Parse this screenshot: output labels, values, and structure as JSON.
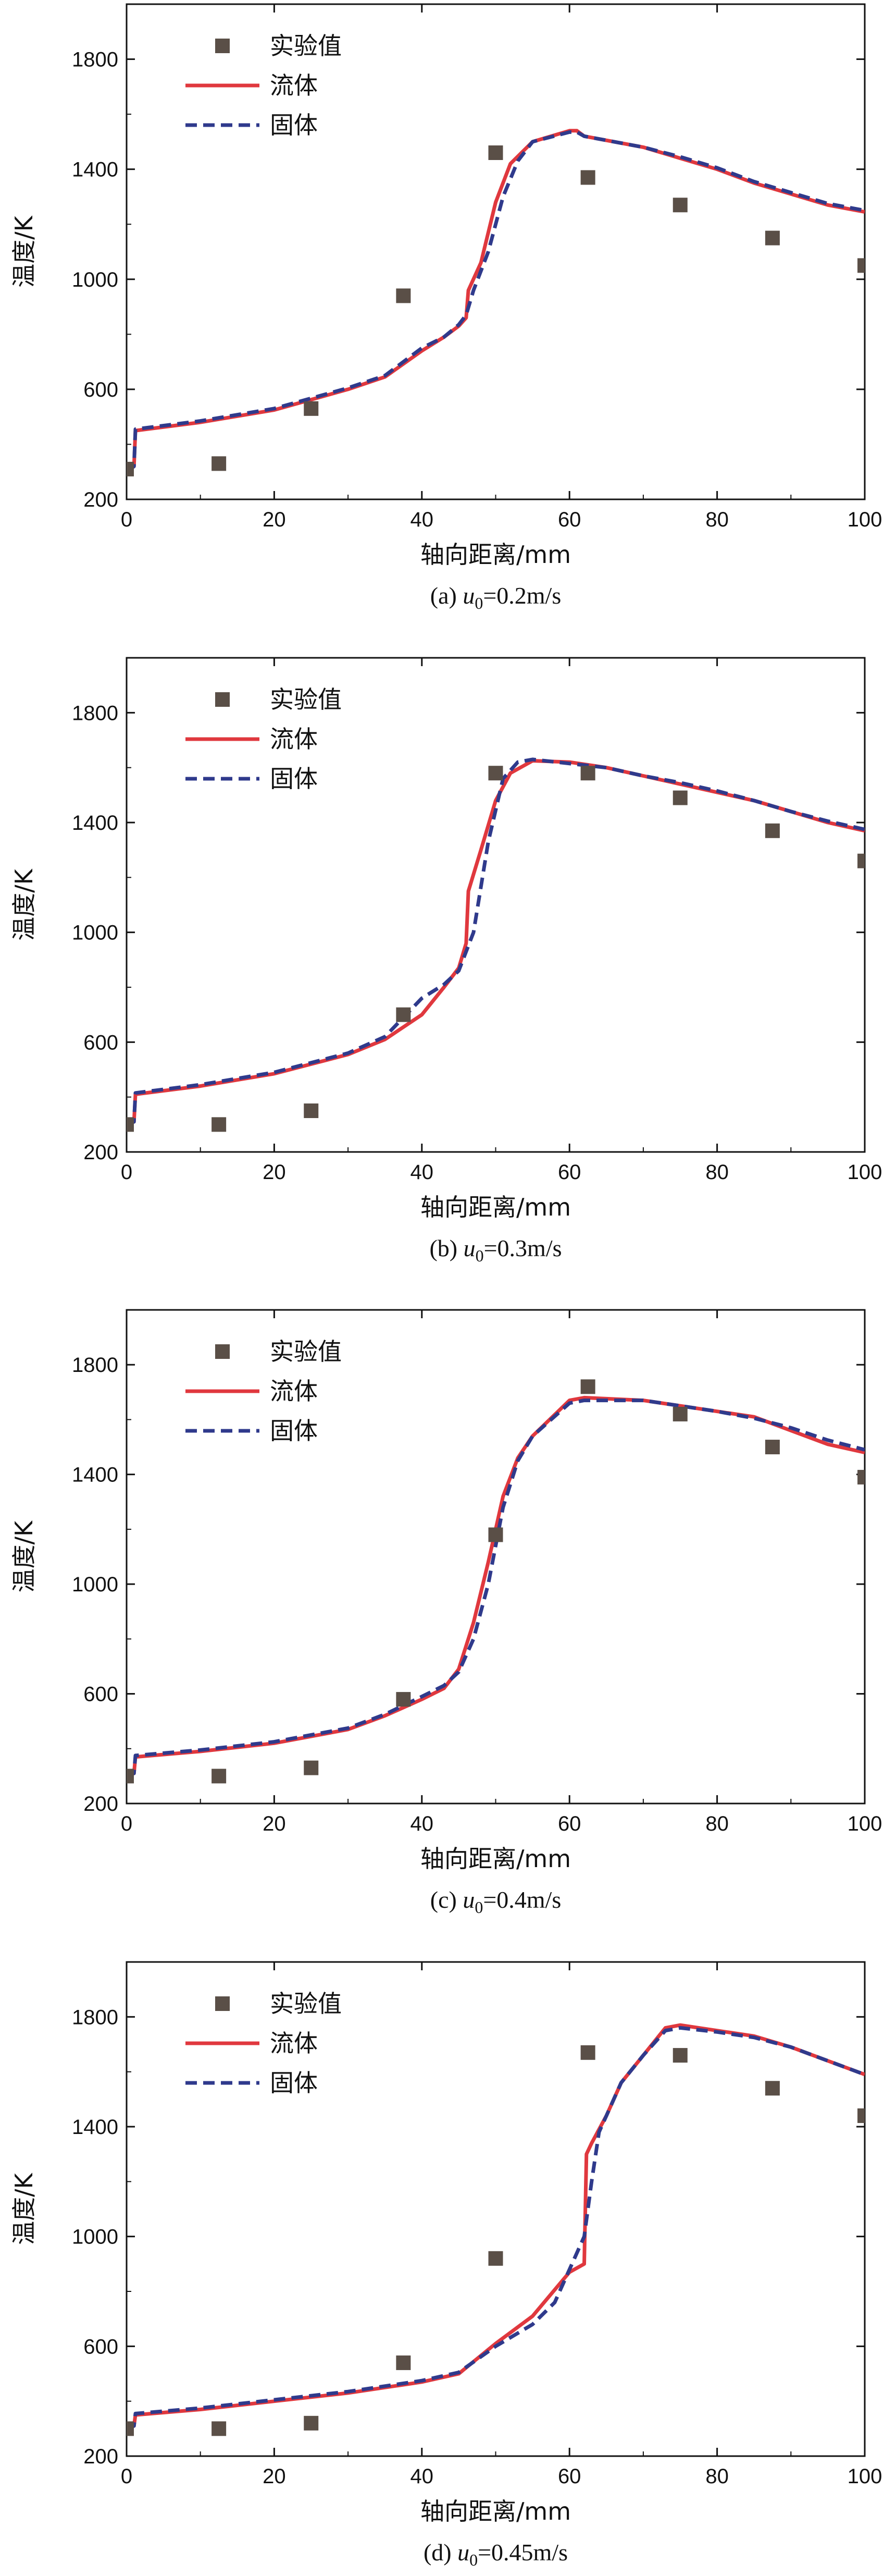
{
  "chart_data": [
    {
      "type": "line",
      "caption": {
        "prefix": "(a) ",
        "var": "u",
        "sub": "0",
        "suffix": "=0.2m/s"
      },
      "xlabel": "轴向距离/mm",
      "ylabel": "温度/K",
      "xlim": [
        0,
        100
      ],
      "ylim": [
        200,
        2000
      ],
      "xticks": [
        0,
        20,
        40,
        60,
        80,
        100
      ],
      "yticks": [
        200,
        600,
        1000,
        1400,
        1800
      ],
      "legend": [
        "实验值",
        "流体",
        "固体"
      ],
      "legend_position": "top-left",
      "colors": {
        "experimental": "#5a4f47",
        "fluid": "#e0383e",
        "solid": "#2f3a8c"
      },
      "series": [
        {
          "name": "实验值",
          "kind": "scatter",
          "x": [
            0,
            12.5,
            25,
            37.5,
            50,
            62.5,
            75,
            87.5,
            100
          ],
          "y": [
            310,
            330,
            530,
            940,
            1460,
            1370,
            1270,
            1150,
            1050
          ]
        },
        {
          "name": "流体",
          "kind": "line",
          "x": [
            0,
            1,
            1.2,
            10,
            20,
            30,
            35,
            40,
            43,
            45,
            46,
            46.3,
            48,
            50,
            52,
            55,
            60,
            61,
            62,
            70,
            75,
            80,
            85,
            90,
            95,
            100
          ],
          "y": [
            300,
            320,
            450,
            480,
            525,
            600,
            645,
            740,
            790,
            830,
            860,
            960,
            1060,
            1280,
            1420,
            1500,
            1540,
            1540,
            1520,
            1480,
            1440,
            1400,
            1350,
            1310,
            1270,
            1245
          ]
        },
        {
          "name": "固体",
          "kind": "line",
          "x": [
            0,
            1,
            1.2,
            10,
            20,
            30,
            35,
            40,
            43,
            45,
            46,
            47,
            49,
            51,
            53,
            55,
            60,
            61,
            62,
            70,
            75,
            80,
            85,
            90,
            95,
            100
          ],
          "y": [
            300,
            320,
            455,
            485,
            530,
            605,
            650,
            750,
            790,
            835,
            870,
            960,
            1100,
            1300,
            1430,
            1500,
            1535,
            1535,
            1520,
            1480,
            1445,
            1405,
            1355,
            1315,
            1275,
            1250
          ]
        }
      ]
    },
    {
      "type": "line",
      "caption": {
        "prefix": "(b) ",
        "var": "u",
        "sub": "0",
        "suffix": "=0.3m/s"
      },
      "xlabel": "轴向距离/mm",
      "ylabel": "温度/K",
      "xlim": [
        0,
        100
      ],
      "ylim": [
        200,
        2000
      ],
      "xticks": [
        0,
        20,
        40,
        60,
        80,
        100
      ],
      "yticks": [
        200,
        600,
        1000,
        1400,
        1800
      ],
      "legend": [
        "实验值",
        "流体",
        "固体"
      ],
      "legend_position": "top-left",
      "colors": {
        "experimental": "#5a4f47",
        "fluid": "#e0383e",
        "solid": "#2f3a8c"
      },
      "series": [
        {
          "name": "实验值",
          "kind": "scatter",
          "x": [
            0,
            12.5,
            25,
            37.5,
            50,
            62.5,
            75,
            87.5,
            100
          ],
          "y": [
            300,
            300,
            350,
            700,
            1580,
            1580,
            1490,
            1370,
            1260
          ]
        },
        {
          "name": "流体",
          "kind": "line",
          "x": [
            0,
            1,
            1.2,
            10,
            20,
            30,
            35,
            40,
            43,
            45,
            46,
            46.3,
            48,
            50,
            52,
            55,
            60,
            65,
            70,
            75,
            80,
            85,
            90,
            95,
            100
          ],
          "y": [
            300,
            310,
            410,
            440,
            485,
            555,
            610,
            700,
            800,
            870,
            960,
            1150,
            1300,
            1480,
            1580,
            1625,
            1620,
            1600,
            1570,
            1540,
            1510,
            1480,
            1440,
            1400,
            1370
          ]
        },
        {
          "name": "固体",
          "kind": "line",
          "x": [
            0,
            1,
            1.2,
            10,
            20,
            30,
            35,
            40,
            43,
            45,
            47,
            49,
            51,
            53,
            55,
            60,
            65,
            70,
            75,
            80,
            85,
            90,
            95,
            100
          ],
          "y": [
            300,
            310,
            415,
            445,
            490,
            560,
            620,
            760,
            810,
            860,
            1000,
            1330,
            1560,
            1620,
            1630,
            1615,
            1600,
            1570,
            1545,
            1515,
            1480,
            1440,
            1405,
            1375
          ]
        }
      ]
    },
    {
      "type": "line",
      "caption": {
        "prefix": "(c) ",
        "var": "u",
        "sub": "0",
        "suffix": "=0.4m/s"
      },
      "xlabel": "轴向距离/mm",
      "ylabel": "温度/K",
      "xlim": [
        0,
        100
      ],
      "ylim": [
        200,
        2000
      ],
      "xticks": [
        0,
        20,
        40,
        60,
        80,
        100
      ],
      "yticks": [
        200,
        600,
        1000,
        1400,
        1800
      ],
      "legend": [
        "实验值",
        "流体",
        "固体"
      ],
      "legend_position": "top-left",
      "colors": {
        "experimental": "#5a4f47",
        "fluid": "#e0383e",
        "solid": "#2f3a8c"
      },
      "series": [
        {
          "name": "实验值",
          "kind": "scatter",
          "x": [
            0,
            12.5,
            25,
            37.5,
            50,
            62.5,
            75,
            87.5,
            100
          ],
          "y": [
            300,
            300,
            330,
            580,
            1180,
            1720,
            1620,
            1500,
            1390
          ]
        },
        {
          "name": "流体",
          "kind": "line",
          "x": [
            0,
            1,
            1.2,
            10,
            20,
            30,
            35,
            40,
            43,
            45,
            47,
            49,
            51,
            53,
            55,
            60,
            62,
            70,
            75,
            80,
            85,
            90,
            95,
            100
          ],
          "y": [
            300,
            310,
            370,
            390,
            420,
            470,
            520,
            580,
            620,
            690,
            860,
            1080,
            1320,
            1460,
            1540,
            1670,
            1680,
            1670,
            1650,
            1630,
            1610,
            1560,
            1510,
            1480
          ]
        },
        {
          "name": "固体",
          "kind": "line",
          "x": [
            0,
            1,
            1.2,
            10,
            20,
            30,
            35,
            40,
            43,
            45,
            47,
            49,
            51,
            53,
            55,
            60,
            62,
            70,
            75,
            80,
            85,
            90,
            95,
            100
          ],
          "y": [
            300,
            310,
            375,
            395,
            425,
            475,
            525,
            590,
            630,
            680,
            800,
            1000,
            1280,
            1450,
            1540,
            1660,
            1670,
            1670,
            1650,
            1630,
            1605,
            1570,
            1525,
            1490
          ]
        }
      ]
    },
    {
      "type": "line",
      "caption": {
        "prefix": "(d) ",
        "var": "u",
        "sub": "0",
        "suffix": "=0.45m/s"
      },
      "xlabel": "轴向距离/mm",
      "ylabel": "温度/K",
      "xlim": [
        0,
        100
      ],
      "ylim": [
        200,
        2000
      ],
      "xticks": [
        0,
        20,
        40,
        60,
        80,
        100
      ],
      "yticks": [
        200,
        600,
        1000,
        1400,
        1800
      ],
      "legend": [
        "实验值",
        "流体",
        "固体"
      ],
      "legend_position": "top-left",
      "colors": {
        "experimental": "#5a4f47",
        "fluid": "#e0383e",
        "solid": "#2f3a8c"
      },
      "series": [
        {
          "name": "实验值",
          "kind": "scatter",
          "x": [
            0,
            12.5,
            25,
            37.5,
            50,
            62.5,
            75,
            87.5,
            100
          ],
          "y": [
            300,
            300,
            320,
            540,
            920,
            1670,
            1660,
            1540,
            1440
          ]
        },
        {
          "name": "流体",
          "kind": "line",
          "x": [
            0,
            1,
            1.2,
            10,
            20,
            30,
            40,
            45,
            50,
            55,
            60,
            62,
            62.3,
            63,
            65,
            67,
            70,
            73,
            75,
            80,
            85,
            90,
            95,
            100
          ],
          "y": [
            300,
            310,
            350,
            370,
            400,
            430,
            470,
            500,
            610,
            710,
            870,
            900,
            1300,
            1340,
            1440,
            1560,
            1660,
            1760,
            1770,
            1750,
            1730,
            1690,
            1640,
            1590
          ]
        },
        {
          "name": "固体",
          "kind": "line",
          "x": [
            0,
            1,
            1.2,
            10,
            20,
            30,
            40,
            45,
            50,
            55,
            58,
            60,
            61,
            62,
            63,
            64,
            65,
            67,
            70,
            73,
            75,
            80,
            85,
            90,
            95,
            100
          ],
          "y": [
            300,
            310,
            355,
            375,
            405,
            435,
            475,
            505,
            600,
            680,
            760,
            880,
            940,
            1000,
            1200,
            1380,
            1440,
            1560,
            1660,
            1750,
            1760,
            1745,
            1725,
            1690,
            1640,
            1590
          ]
        }
      ]
    }
  ]
}
